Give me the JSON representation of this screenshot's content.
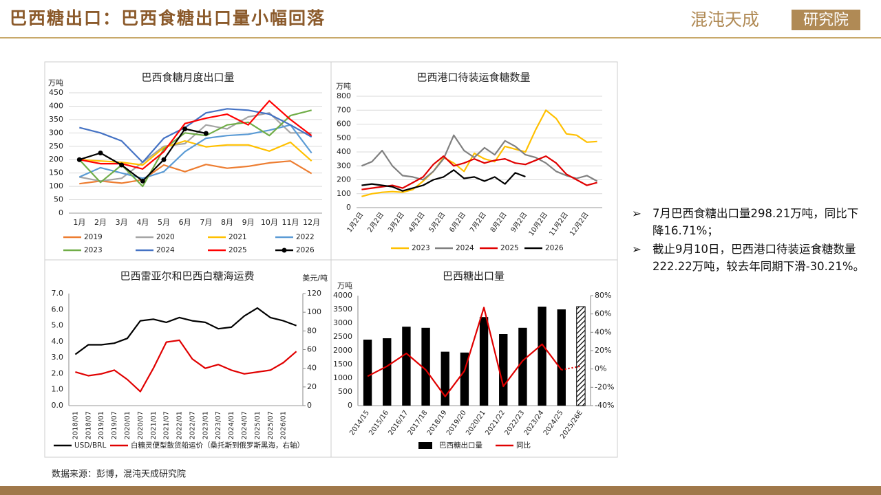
{
  "header": {
    "title": "巴西糖出口：巴西食糖出口量小幅回落",
    "logo": "混沌天成",
    "logo_tag": "研究院"
  },
  "bullets": [
    "7月巴西食糖出口量298.21万吨，同比下降16.71%；",
    "截止9月10日，巴西港口待装运食糖数量222.22万吨，较去年同期下滑-30.21%。"
  ],
  "source": "数据来源：彭博，混沌天成研究院",
  "chart_data": [
    {
      "type": "line",
      "title": "巴西食糖月度出口量",
      "y_label": "万吨",
      "grid": true,
      "categories": [
        "1月",
        "2月",
        "3月",
        "4月",
        "5月",
        "6月",
        "7月",
        "8月",
        "9月",
        "10月",
        "11月",
        "12月"
      ],
      "ylim": [
        0,
        450
      ],
      "yticks": [
        0,
        50,
        100,
        150,
        200,
        250,
        300,
        350,
        400,
        450
      ],
      "series": [
        {
          "name": "2019",
          "color": "#ed7d31",
          "values": [
            110,
            120,
            112,
            125,
            180,
            155,
            182,
            168,
            175,
            188,
            195,
            148
          ]
        },
        {
          "name": "2020",
          "color": "#a5a5a5",
          "values": [
            135,
            120,
            130,
            190,
            250,
            260,
            330,
            315,
            360,
            375,
            300,
            300
          ]
        },
        {
          "name": "2021",
          "color": "#ffc000",
          "values": [
            200,
            195,
            190,
            180,
            245,
            270,
            248,
            255,
            255,
            232,
            265,
            195
          ]
        },
        {
          "name": "2022",
          "color": "#5b9bd5",
          "values": [
            135,
            170,
            150,
            130,
            155,
            230,
            280,
            290,
            295,
            310,
            330,
            225
          ]
        },
        {
          "name": "2023",
          "color": "#70ad47",
          "values": [
            200,
            115,
            180,
            100,
            240,
            300,
            290,
            330,
            340,
            290,
            365,
            385
          ]
        },
        {
          "name": "2024",
          "color": "#4472c4",
          "values": [
            320,
            300,
            270,
            190,
            280,
            320,
            375,
            390,
            385,
            370,
            330,
            285
          ]
        },
        {
          "name": "2025",
          "color": "#ff0000",
          "values": [
            200,
            185,
            185,
            165,
            230,
            335,
            355,
            370,
            330,
            420,
            350,
            290
          ]
        },
        {
          "name": "2026",
          "color": "#000000",
          "marker": true,
          "values": [
            200,
            225,
            180,
            120,
            200,
            315,
            298.21,
            null,
            null,
            null,
            null,
            null
          ]
        }
      ]
    },
    {
      "type": "line",
      "title": "巴西港口待装运食糖数量",
      "y_label": "万吨",
      "grid": true,
      "categories": [
        "1月2日",
        null,
        "2月2日",
        null,
        "3月2日",
        null,
        "4月2日",
        null,
        "5月2日",
        null,
        "6月2日",
        null,
        "7月2日",
        null,
        "8月2日",
        null,
        "9月2日",
        null,
        "10月2日",
        null,
        "11月2日",
        null,
        "12月2日",
        null
      ],
      "ylim": [
        0,
        800
      ],
      "yticks": [
        0,
        100,
        200,
        300,
        400,
        500,
        600,
        700,
        800
      ],
      "series": [
        {
          "name": "2023",
          "color": "#ffc000",
          "values": [
            80,
            100,
            110,
            115,
            110,
            130,
            190,
            260,
            360,
            320,
            260,
            390,
            350,
            330,
            440,
            420,
            400,
            560,
            700,
            640,
            530,
            520,
            470,
            475
          ]
        },
        {
          "name": "2024",
          "color": "#808080",
          "values": [
            300,
            330,
            410,
            300,
            230,
            220,
            200,
            260,
            350,
            520,
            410,
            360,
            430,
            380,
            480,
            440,
            380,
            360,
            320,
            260,
            230,
            210,
            230,
            190
          ]
        },
        {
          "name": "2025",
          "color": "#e00000",
          "values": [
            130,
            140,
            150,
            160,
            140,
            180,
            220,
            310,
            370,
            300,
            320,
            350,
            320,
            340,
            350,
            320,
            310,
            340,
            370,
            320,
            240,
            200,
            160,
            180
          ]
        },
        {
          "name": "2026",
          "color": "#000000",
          "values": [
            160,
            170,
            160,
            150,
            120,
            140,
            160,
            200,
            220,
            270,
            210,
            220,
            190,
            220,
            170,
            250,
            222.22,
            null,
            null,
            null,
            null,
            null,
            null,
            null
          ]
        }
      ]
    },
    {
      "type": "line",
      "title": "巴西雷亚尔和巴西白糖海运费",
      "y2_label": "美元/吨",
      "grid": false,
      "categories": [
        "2018/01",
        "2018/07",
        "2019/01",
        "2019/07",
        "2020/01",
        "2020/07",
        "2021/01",
        "2021/07",
        "2022/01",
        "2022/07",
        "2023/01",
        "2023/07",
        "2024/01",
        "2024/07",
        "2025/01",
        "2025/07",
        "2026/01",
        null
      ],
      "ylim": [
        0,
        7
      ],
      "yticks": [
        {
          "value": 0,
          "label": "0.0"
        },
        {
          "value": 1,
          "label": "1.0"
        },
        {
          "value": 2,
          "label": "2.0"
        },
        {
          "value": 3,
          "label": "3.0"
        },
        {
          "value": 4,
          "label": "4.0"
        },
        {
          "value": 5,
          "label": "5.0"
        },
        {
          "value": 6,
          "label": "6.0"
        },
        {
          "value": 7,
          "label": "7.0"
        }
      ],
      "y2lim": [
        0,
        120
      ],
      "y2ticks": [
        0,
        20,
        40,
        60,
        80,
        100,
        120
      ],
      "series": [
        {
          "name": "USD/BRL",
          "color": "#000000",
          "values": [
            3.2,
            3.8,
            3.8,
            3.9,
            4.2,
            5.3,
            5.4,
            5.2,
            5.5,
            5.3,
            5.2,
            4.8,
            4.9,
            5.6,
            6.1,
            5.5,
            5.3,
            5.0
          ]
        },
        {
          "name": "白糖灵便型散货船运价（桑托斯到俄罗斯黑海，右轴）",
          "color": "#e00000",
          "axis": "y2",
          "values": [
            36,
            32,
            34,
            38,
            28,
            15,
            40,
            68,
            70,
            50,
            40,
            44,
            38,
            34,
            36,
            38,
            46,
            58
          ]
        }
      ]
    },
    {
      "type": "bar",
      "title": "巴西糖出口量",
      "y_label": "万吨",
      "grid": false,
      "categories": [
        "2014/15",
        "2015/16",
        "2016/17",
        "2017/18",
        "2018/19",
        "2019/20",
        "2020/21",
        "2021/22",
        "2022/23",
        "2023/24",
        "2024/25",
        "2025/26E"
      ],
      "ylim": [
        0,
        4000
      ],
      "yticks": [
        0,
        500,
        1000,
        1500,
        2000,
        2500,
        3000,
        3500,
        4000
      ],
      "y2lim": [
        -40,
        80
      ],
      "y2ticks": [
        {
          "value": -40,
          "label": "-40%"
        },
        {
          "value": -20,
          "label": "-20%"
        },
        {
          "value": 0,
          "label": "0%"
        },
        {
          "value": 20,
          "label": "20%"
        },
        {
          "value": 40,
          "label": "40%"
        },
        {
          "value": 60,
          "label": "60%"
        },
        {
          "value": 80,
          "label": "80%"
        }
      ],
      "series": [
        {
          "name": "巴西糖出口量",
          "type": "bar",
          "color": "#000000",
          "hatched_last": true,
          "values": [
            2400,
            2450,
            2870,
            2830,
            1960,
            1930,
            3220,
            2600,
            2830,
            3600,
            3500,
            3600
          ]
        },
        {
          "name": "同比",
          "color": "#e00000",
          "axis": "y2",
          "dashed_last": true,
          "values": [
            -8,
            3,
            17,
            -1,
            -30,
            -2,
            67,
            -19,
            9,
            27,
            -1,
            3
          ]
        }
      ]
    }
  ]
}
